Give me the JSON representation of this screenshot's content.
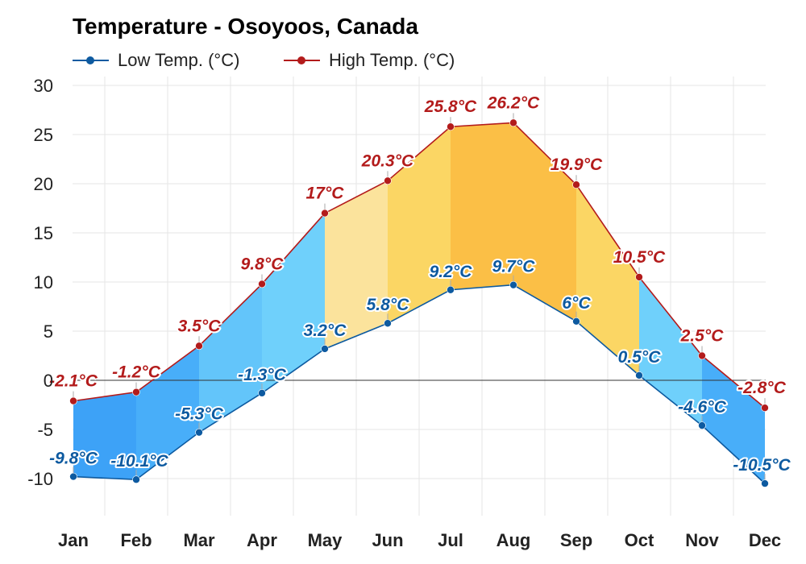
{
  "chart_data": {
    "type": "area",
    "title": "Temperature - Osoyoos, Canada",
    "categories": [
      "Jan",
      "Feb",
      "Mar",
      "Apr",
      "May",
      "Jun",
      "Jul",
      "Aug",
      "Sep",
      "Oct",
      "Nov",
      "Dec"
    ],
    "series": [
      {
        "name": "Low Temp. (°C)",
        "color": "#0d5aa0",
        "values": [
          -9.8,
          -10.1,
          -5.3,
          -1.3,
          3.2,
          5.8,
          9.2,
          9.7,
          6,
          0.5,
          -4.6,
          -10.5
        ],
        "labels": [
          "-9.8°C",
          "-10.1°C",
          "-5.3°C",
          "-1.3°C",
          "3.2°C",
          "5.8°C",
          "9.2°C",
          "9.7°C",
          "6°C",
          "0.5°C",
          "-4.6°C",
          "-10.5°C"
        ]
      },
      {
        "name": "High Temp. (°C)",
        "color": "#b31b1b",
        "values": [
          -2.1,
          -1.2,
          3.5,
          9.8,
          17,
          20.3,
          25.8,
          26.2,
          19.9,
          10.5,
          2.5,
          -2.8
        ],
        "labels": [
          "-2.1°C",
          "-1.2°C",
          "3.5°C",
          "9.8°C",
          "17°C",
          "20.3°C",
          "25.8°C",
          "26.2°C",
          "19.9°C",
          "10.5°C",
          "2.5°C",
          "-2.8°C"
        ]
      }
    ],
    "yticks": [
      "30",
      "25",
      "20",
      "15",
      "10",
      "5",
      "0",
      "-5",
      "-10"
    ],
    "ylim": [
      -14,
      30
    ],
    "grid": true,
    "legend_position": "top-left",
    "band_colors": [
      "#3da2f7",
      "#48aef9",
      "#63c5fa",
      "#6fd0fb",
      "#fbe39c",
      "#fbd664",
      "#fbbf46",
      "#fbbf46",
      "#fbd664",
      "#6fd0fb",
      "#48aef9",
      "#3da2f7"
    ]
  }
}
